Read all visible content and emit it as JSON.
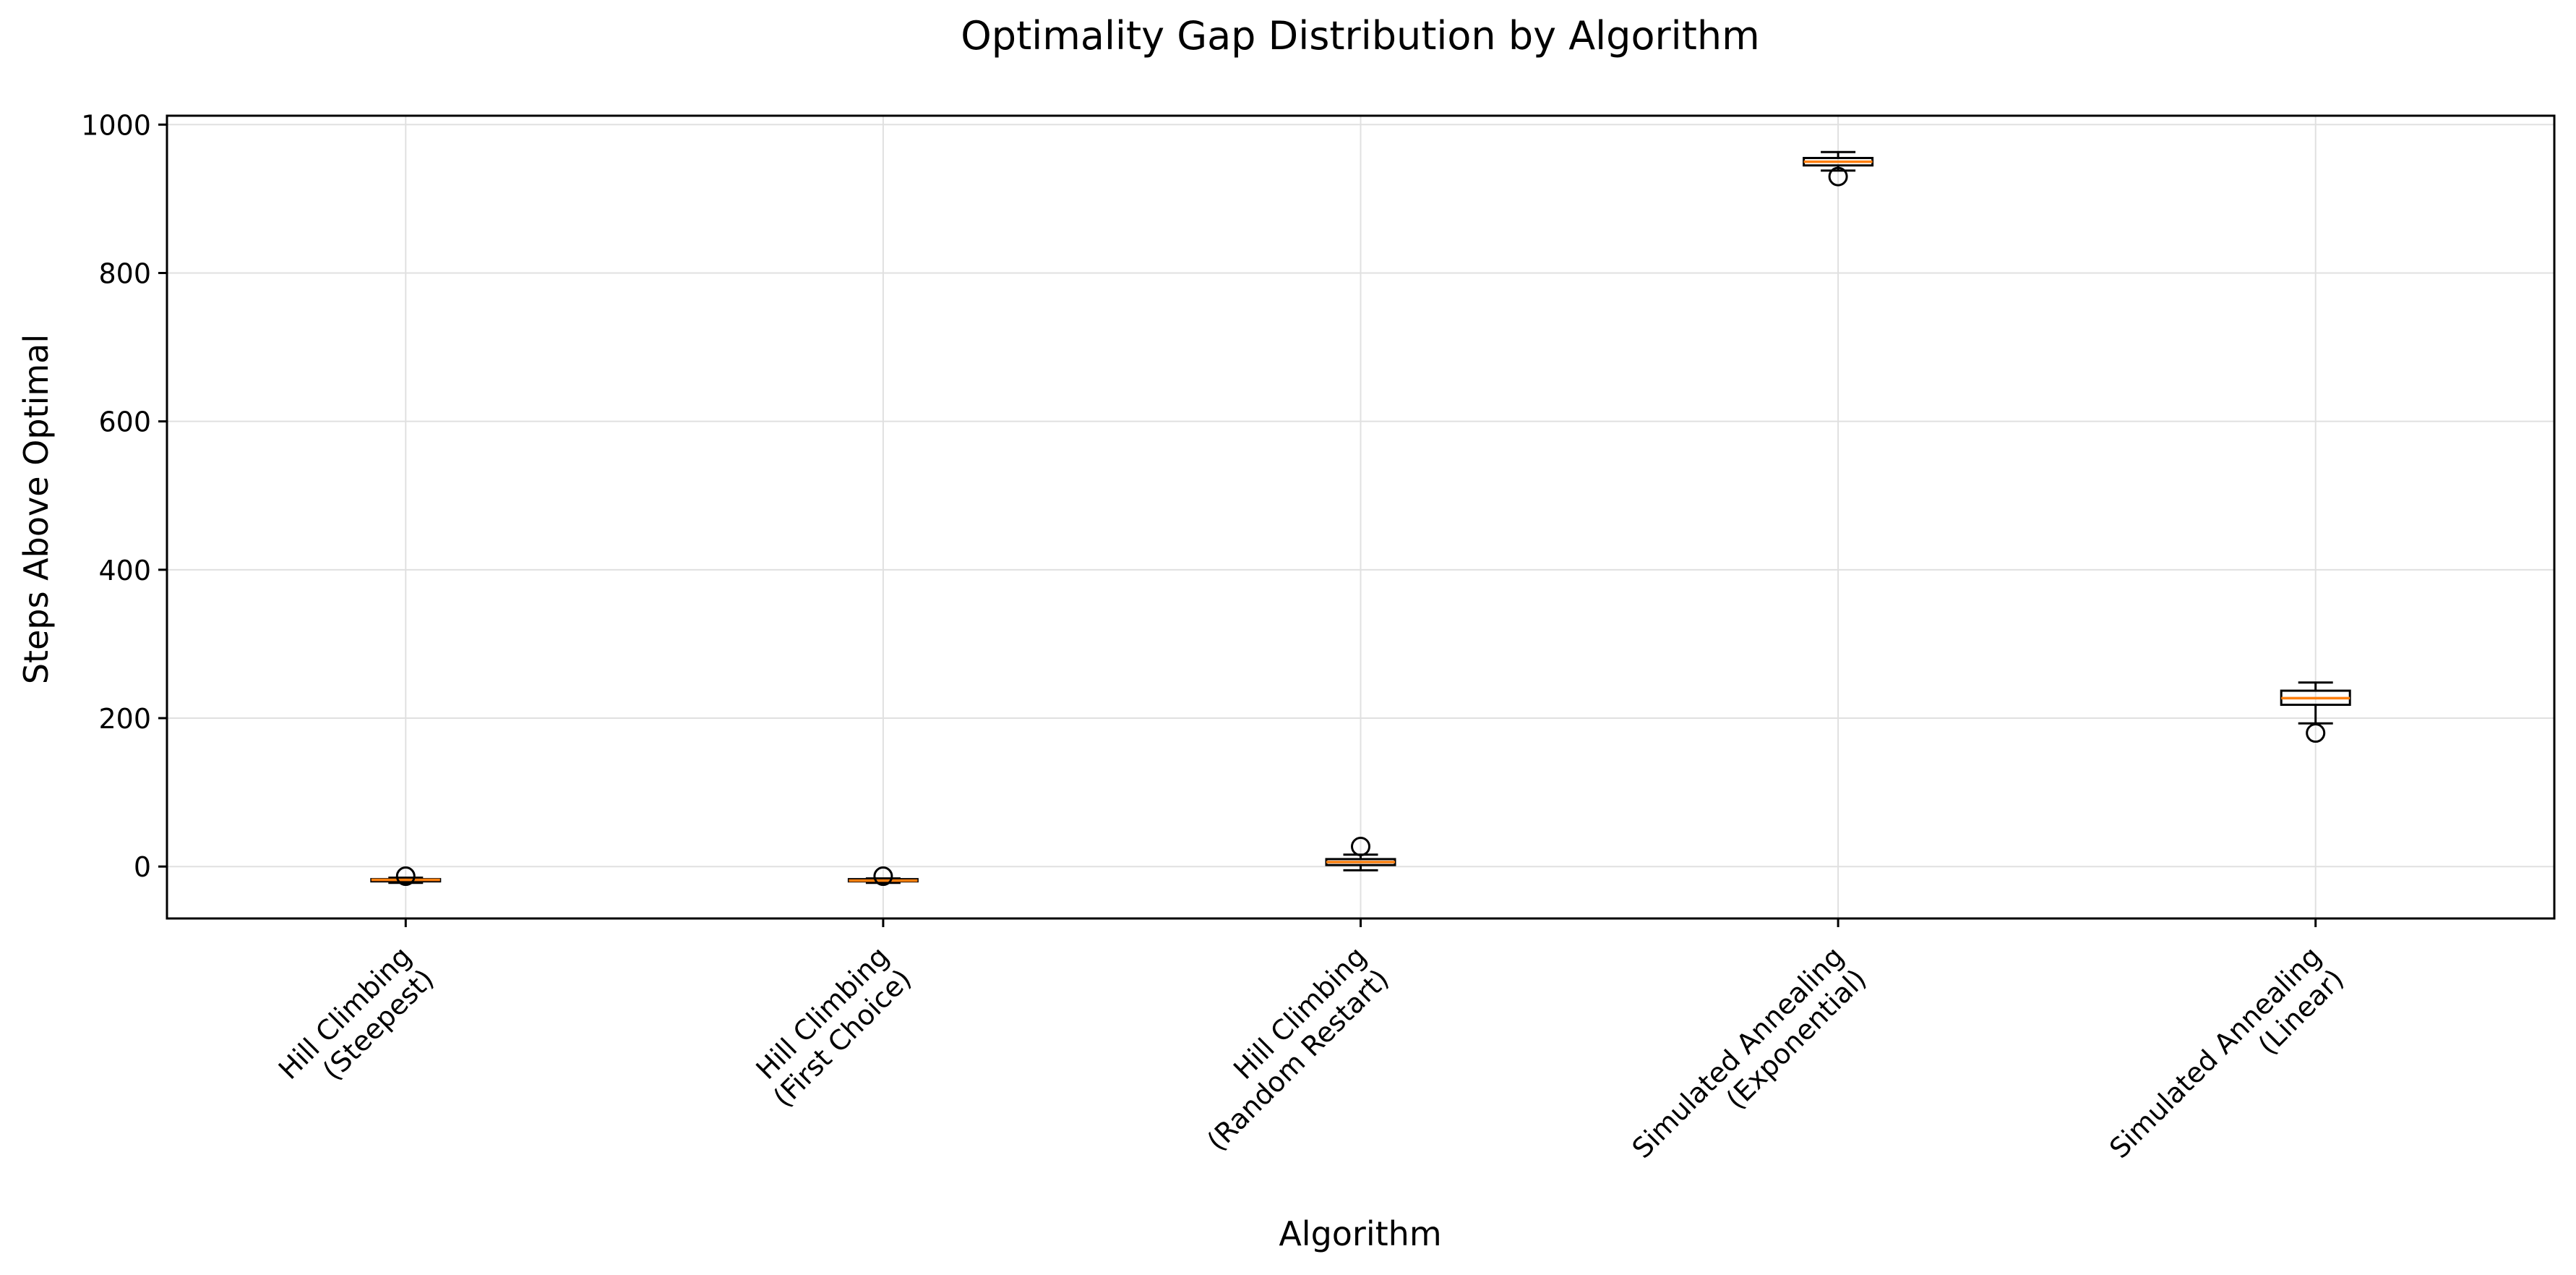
{
  "chart_data": {
    "type": "box",
    "title": "Optimality Gap Distribution by Algorithm",
    "xlabel": "Algorithm",
    "ylabel": "Steps Above Optimal",
    "ylim": [
      -70,
      1012
    ],
    "yticks": [
      0,
      200,
      400,
      600,
      800,
      1000
    ],
    "grid": true,
    "categories": [
      "Hill Climbing\n(Steepest)",
      "Hill Climbing\n(First Choice)",
      "Hill Climbing\n(Random Restart)",
      "Simulated Annealing\n(Exponential)",
      "Simulated Annealing\n(Linear)"
    ],
    "boxes": [
      {
        "whisker_low": -22,
        "q1": -20,
        "median": -18,
        "q3": -17,
        "whisker_high": -15,
        "outliers": [
          -13
        ]
      },
      {
        "whisker_low": -22,
        "q1": -20,
        "median": -19,
        "q3": -17,
        "whisker_high": -16,
        "outliers": [
          -13
        ]
      },
      {
        "whisker_low": -5,
        "q1": 2,
        "median": 6,
        "q3": 10,
        "whisker_high": 16,
        "outliers": [
          27
        ]
      },
      {
        "whisker_low": 938,
        "q1": 945,
        "median": 950,
        "q3": 955,
        "whisker_high": 963,
        "outliers": [
          930
        ]
      },
      {
        "whisker_low": 193,
        "q1": 218,
        "median": 227,
        "q3": 237,
        "whisker_high": 248,
        "outliers": [
          180
        ]
      }
    ]
  },
  "colors": {
    "median": "#ff7f0e",
    "box_edge": "#000000",
    "grid": "#e0e0e0"
  }
}
